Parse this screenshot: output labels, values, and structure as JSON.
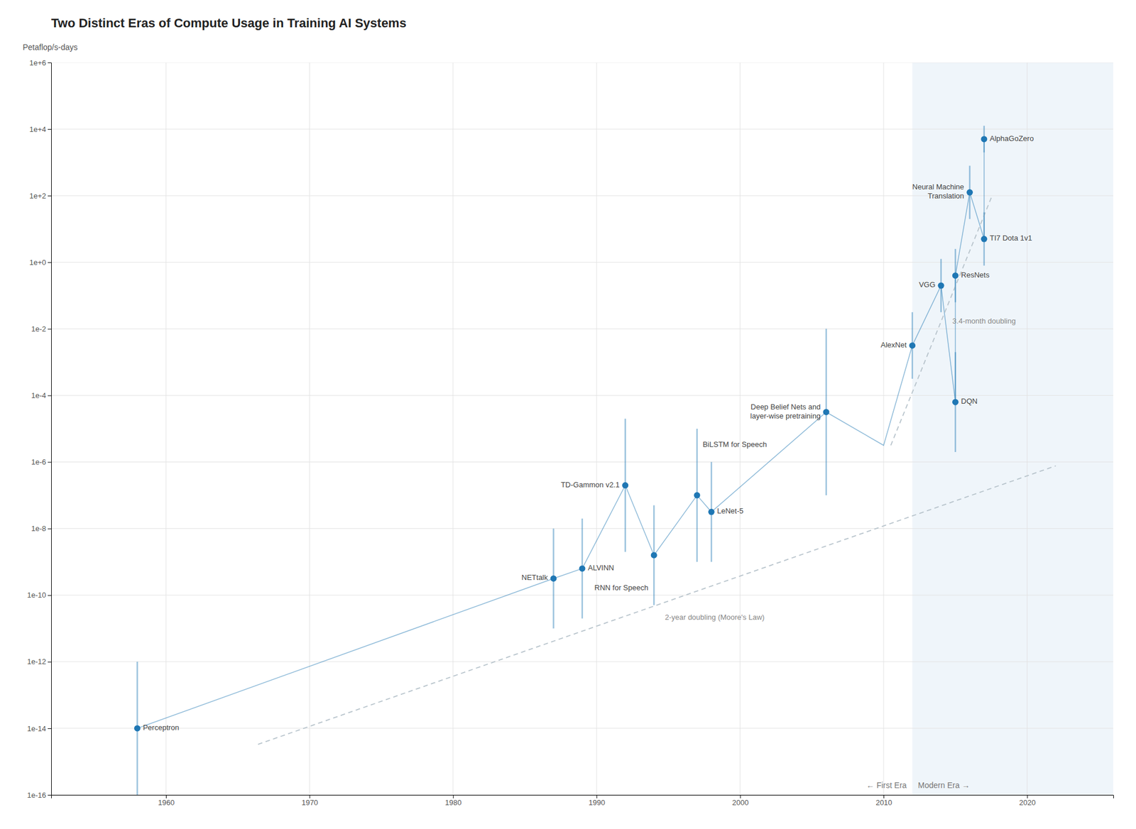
{
  "chart_data": {
    "type": "scatter",
    "title": "Two Distinct Eras of Compute Usage in Training AI Systems",
    "y_label": "Petaflop/s-days",
    "log": "y",
    "grid": true,
    "xlim": [
      1952,
      2026
    ],
    "xticks": [
      1960,
      1970,
      1980,
      1990,
      2000,
      2010,
      2020
    ],
    "ylim": [
      1e-16,
      1000000
    ],
    "yticks": [
      {
        "value": 1e-16,
        "label": "1e-16"
      },
      {
        "value": 1e-14,
        "label": "1e-14"
      },
      {
        "value": 1e-12,
        "label": "1e-12"
      },
      {
        "value": 1e-10,
        "label": "1e-10"
      },
      {
        "value": 1e-08,
        "label": "1e-8"
      },
      {
        "value": 1e-06,
        "label": "1e-6"
      },
      {
        "value": 0.0001,
        "label": "1e-4"
      },
      {
        "value": 0.01,
        "label": "1e-2"
      },
      {
        "value": 1,
        "label": "1e+0"
      },
      {
        "value": 100,
        "label": "1e+2"
      },
      {
        "value": 10000,
        "label": "1e+4"
      },
      {
        "value": 1000000,
        "label": "1e+6"
      }
    ],
    "era_boundary": 2012,
    "annotations": [
      "← First Era",
      "Modern Era →"
    ],
    "series": [
      {
        "type": "scatter",
        "marker": "circle",
        "labels": [
          "Perceptron",
          "NETtalk",
          "ALVINN",
          "TD-Gammon v2.1",
          "RNN for Speech",
          "LeNet-5",
          "BiLSTM for Speech",
          "Deep Belief Nets and\nlayer-wise pretraining",
          "AlexNet",
          "VGG",
          "ResNets",
          "Neural Machine\nTranslation",
          "DQN",
          "AlphaGoZero",
          "TI7 Dota 1v1"
        ],
        "x": [
          1958,
          1987,
          1989,
          1992,
          1994,
          1998,
          1997,
          2006,
          2012,
          2014,
          2015,
          2016,
          2015,
          2017,
          2017
        ],
        "values": [
          1e-14,
          3.1622776601683795e-10,
          6.309573444801943e-10,
          1.9952623149688827e-07,
          1.584893192461111e-09,
          3.162277660168379e-08,
          1e-07,
          3.1622776601683795e-05,
          0.0031622776601683794,
          0.19952623149688797,
          0.3981071705534972,
          125.89254117941675,
          6.309573444801929e-05,
          5011.872336272725,
          5.011872336272722
        ],
        "lower": [
          1e-16,
          1e-11,
          1.9952623149688828e-11,
          1.9952623149688828e-09,
          5.011872336272725e-11,
          1e-09,
          1e-09,
          1e-07,
          0.00031622776601683794,
          0.03162277660168379,
          0.06309573444801933,
          19.952623149688797,
          1.995262314968883e-06,
          1995.2623149688789,
          0.7943282347242815
        ],
        "upper": [
          1e-12,
          1e-08,
          1.995262314968883e-08,
          1.9952623149688827e-05,
          5.011872336272725e-08,
          1e-06,
          1e-05,
          0.01,
          0.03162277660168379,
          1.2589254117941673,
          2.51188643150958,
          794.3282347242815,
          0.0019952623149688794,
          12589.254117941662,
          31.622776601683793
        ]
      },
      {
        "type": "line",
        "line_style": "solid",
        "x": [
          1958,
          1987,
          1989,
          1992,
          1994,
          1997,
          1998,
          2006,
          2010,
          2012,
          2014,
          2015,
          2015,
          2016,
          2017,
          2017
        ],
        "values": [
          1e-14,
          3.1622776601683795e-10,
          6.309573444801943e-10,
          1.9952623149688827e-07,
          1.584893192461111e-09,
          1e-07,
          3.162277660168379e-08,
          3.1622776601683795e-05,
          3.1622776601683796e-06,
          0.0031622776601683794,
          0.19952623149688797,
          6.309573444801929e-05,
          0.3981071705534972,
          125.89254117941675,
          5.011872336272722,
          5011.872336272725
        ]
      },
      {
        "type": "line",
        "line_style": "dashed",
        "color": "#b8c4cc",
        "label": "2-year doubling (Moore's Law)",
        "x": [
          1966.4128256513027,
          2022
        ],
        "values": [
          3.302413e-15,
          7.683071e-07
        ]
      },
      {
        "type": "line",
        "line_style": "dashed",
        "color": "#b8c4cc",
        "label": "3.4-month doubling",
        "x": [
          2010.5,
          2017.5
        ],
        "values": [
          3.1622776601683796e-06,
          86.53896
        ]
      }
    ]
  }
}
